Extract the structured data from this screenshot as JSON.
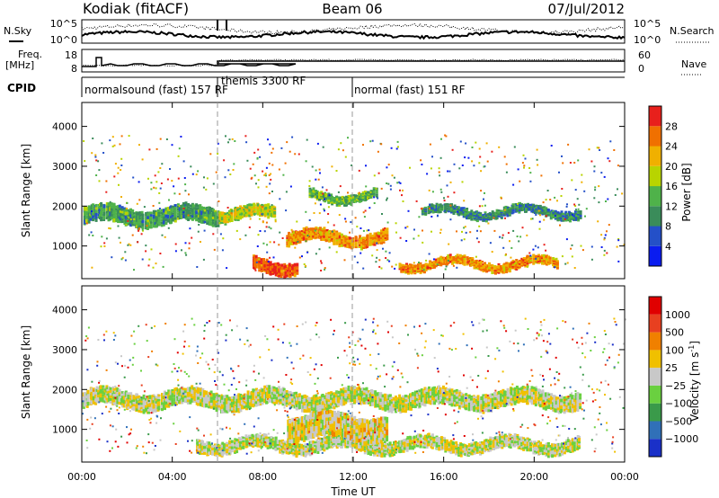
{
  "header": {
    "station": "Kodiak (fitACF)",
    "beam": "Beam 06",
    "date": "07/Jul/2012"
  },
  "top_panels": {
    "nsky_label": "N.Sky",
    "nsky_ticks": [
      "10^5",
      "10^0"
    ],
    "nsearch_label": "N.Search",
    "nsearch_ticks": [
      "10^5",
      "10^0"
    ],
    "freq_label_1": "Freq.",
    "freq_label_2": "[MHz]",
    "freq_ticks": [
      "18",
      "8"
    ],
    "nave_label": "Nave",
    "nave_ticks": [
      "60",
      "0"
    ],
    "cpid_label": "CPID",
    "cpid_segments": [
      {
        "label": "normalsound (fast) 157 RF",
        "start_hour": 0,
        "end_hour": 6
      },
      {
        "label": "themis 3300 RF",
        "start_hour": 6,
        "end_hour": 12
      },
      {
        "label": "normal (fast) 151 RF",
        "start_hour": 12,
        "end_hour": 24
      }
    ]
  },
  "chart_data": [
    {
      "type": "heatmap",
      "title": "",
      "xlabel": "",
      "ylabel": "Slant Range [km]",
      "xlim": [
        0,
        24
      ],
      "ylim": [
        180,
        4600
      ],
      "yticks": [
        "1000",
        "2000",
        "3000",
        "4000"
      ],
      "colorbar": {
        "label": "Power [dB]",
        "ticks": [
          "4",
          "8",
          "12",
          "16",
          "20",
          "24",
          "28"
        ],
        "colors": [
          "#0a1cf0",
          "#2450c8",
          "#3a8c5a",
          "#4fb24a",
          "#b8d400",
          "#f0b000",
          "#f07000",
          "#e8201c"
        ]
      },
      "bands": [
        {
          "start": 0,
          "end": 6,
          "range": [
            1500,
            2000
          ],
          "value": 12
        },
        {
          "start": 6,
          "end": 8.5,
          "range": [
            1600,
            2000
          ],
          "value": 18
        },
        {
          "start": 7.5,
          "end": 9.5,
          "range": [
            300,
            700
          ],
          "value": 28
        },
        {
          "start": 9,
          "end": 13.5,
          "range": [
            1000,
            1400
          ],
          "value": 24
        },
        {
          "start": 10,
          "end": 13,
          "range": [
            2100,
            2400
          ],
          "value": 14
        },
        {
          "start": 14,
          "end": 21,
          "range": [
            400,
            700
          ],
          "value": 24
        },
        {
          "start": 15,
          "end": 22,
          "range": [
            1700,
            2000
          ],
          "value": 10
        }
      ]
    },
    {
      "type": "heatmap",
      "title": "",
      "xlabel": "Time UT",
      "ylabel": "Slant Range [km]",
      "xlim": [
        0,
        24
      ],
      "ylim": [
        180,
        4600
      ],
      "xticks": [
        "00:00",
        "04:00",
        "08:00",
        "12:00",
        "16:00",
        "20:00",
        "00:00"
      ],
      "yticks": [
        "1000",
        "2000",
        "3000",
        "4000"
      ],
      "colorbar": {
        "label": "Velocity [m s",
        "label_sup": "-1",
        "label_end": "]",
        "ticks": [
          "1000",
          "500",
          "100",
          "25",
          "−25",
          "−100",
          "−500",
          "−1000"
        ],
        "colors": [
          "#1a30c8",
          "#3070b8",
          "#3a9a4a",
          "#6ad040",
          "#c8c8c8",
          "#f0c000",
          "#f08000",
          "#e84020",
          "#e00000"
        ]
      },
      "bands": [
        {
          "start": 0,
          "end": 22,
          "range": [
            1500,
            2000
          ],
          "value": 0
        },
        {
          "start": 5,
          "end": 22,
          "range": [
            400,
            800
          ],
          "value": 0
        },
        {
          "start": 9,
          "end": 13.5,
          "range": [
            700,
            1400
          ],
          "value": 100
        }
      ]
    }
  ]
}
